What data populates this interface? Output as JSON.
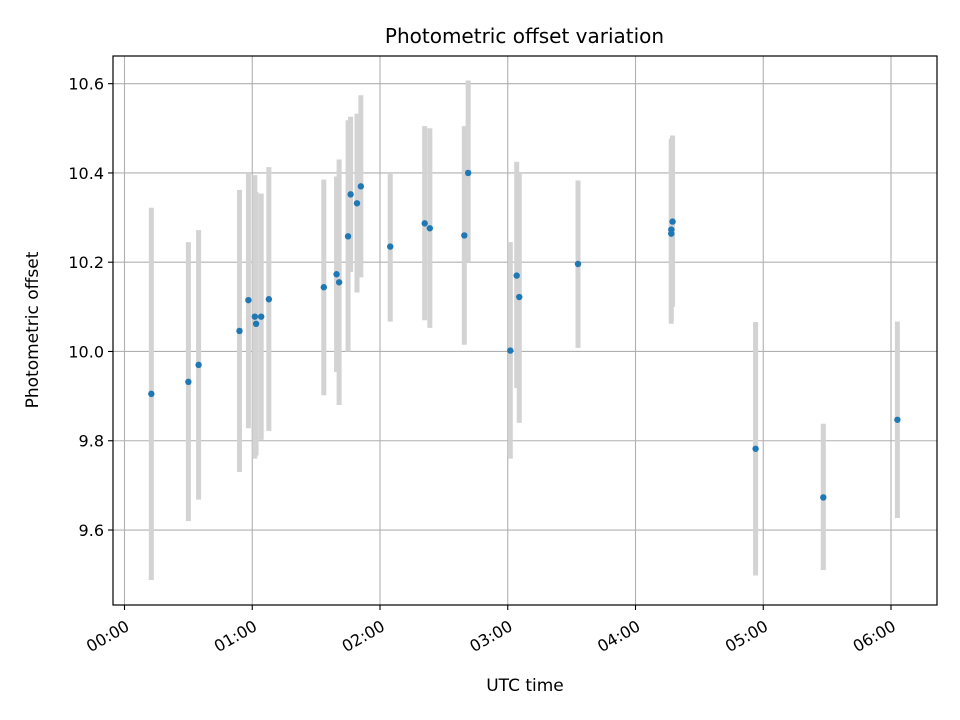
{
  "chart_data": {
    "type": "scatter",
    "title": "Photometric offset variation",
    "xlabel": "UTC time",
    "ylabel": "Photometric offset",
    "x_unit": "hours since 00:00 UTC",
    "xlim": [
      -0.09,
      6.36
    ],
    "ylim": [
      9.432,
      10.662
    ],
    "xticks": [
      0,
      1,
      2,
      3,
      4,
      5,
      6
    ],
    "xtick_labels": [
      "00:00",
      "01:00",
      "02:00",
      "03:00",
      "04:00",
      "05:00",
      "06:00"
    ],
    "yticks": [
      9.6,
      9.8,
      10.0,
      10.2,
      10.4,
      10.6
    ],
    "ytick_labels": [
      "9.6",
      "9.8",
      "10.0",
      "10.2",
      "10.4",
      "10.6"
    ],
    "grid": true,
    "point_color": "#1f77b4",
    "errorbar_color": "#d3d3d3",
    "points": [
      {
        "x": 0.21,
        "y": 9.905,
        "low": 9.488,
        "high": 10.322
      },
      {
        "x": 0.5,
        "y": 9.932,
        "low": 9.62,
        "high": 10.245
      },
      {
        "x": 0.58,
        "y": 9.97,
        "low": 9.668,
        "high": 10.272
      },
      {
        "x": 0.9,
        "y": 10.046,
        "low": 9.73,
        "high": 10.362
      },
      {
        "x": 0.97,
        "y": 10.115,
        "low": 9.828,
        "high": 10.4
      },
      {
        "x": 1.02,
        "y": 10.078,
        "low": 9.76,
        "high": 10.395
      },
      {
        "x": 1.03,
        "y": 10.062,
        "low": 9.767,
        "high": 10.357
      },
      {
        "x": 1.07,
        "y": 10.078,
        "low": 9.802,
        "high": 10.354
      },
      {
        "x": 1.13,
        "y": 10.117,
        "low": 9.822,
        "high": 10.413
      },
      {
        "x": 1.56,
        "y": 10.144,
        "low": 9.902,
        "high": 10.385
      },
      {
        "x": 1.66,
        "y": 10.173,
        "low": 9.954,
        "high": 10.392
      },
      {
        "x": 1.68,
        "y": 10.155,
        "low": 9.88,
        "high": 10.43
      },
      {
        "x": 1.75,
        "y": 10.258,
        "low": 10.0,
        "high": 10.518
      },
      {
        "x": 1.77,
        "y": 10.352,
        "low": 10.178,
        "high": 10.526
      },
      {
        "x": 1.82,
        "y": 10.332,
        "low": 10.132,
        "high": 10.533
      },
      {
        "x": 1.85,
        "y": 10.37,
        "low": 10.166,
        "high": 10.574
      },
      {
        "x": 2.08,
        "y": 10.235,
        "low": 10.067,
        "high": 10.4
      },
      {
        "x": 2.35,
        "y": 10.287,
        "low": 10.07,
        "high": 10.505
      },
      {
        "x": 2.39,
        "y": 10.276,
        "low": 10.053,
        "high": 10.5
      },
      {
        "x": 2.66,
        "y": 10.26,
        "low": 10.015,
        "high": 10.505
      },
      {
        "x": 2.69,
        "y": 10.4,
        "low": 10.2,
        "high": 10.607
      },
      {
        "x": 3.02,
        "y": 10.002,
        "low": 9.76,
        "high": 10.245
      },
      {
        "x": 3.07,
        "y": 10.17,
        "low": 9.918,
        "high": 10.425
      },
      {
        "x": 3.09,
        "y": 10.122,
        "low": 9.84,
        "high": 10.4
      },
      {
        "x": 3.55,
        "y": 10.196,
        "low": 10.008,
        "high": 10.383
      },
      {
        "x": 4.28,
        "y": 10.264,
        "low": 10.062,
        "high": 10.47
      },
      {
        "x": 4.28,
        "y": 10.273,
        "low": 10.073,
        "high": 10.477
      },
      {
        "x": 4.29,
        "y": 10.291,
        "low": 10.1,
        "high": 10.484
      },
      {
        "x": 4.94,
        "y": 9.782,
        "low": 9.498,
        "high": 10.066
      },
      {
        "x": 5.47,
        "y": 9.673,
        "low": 9.51,
        "high": 9.838
      },
      {
        "x": 6.05,
        "y": 9.847,
        "low": 9.627,
        "high": 10.067
      }
    ]
  }
}
